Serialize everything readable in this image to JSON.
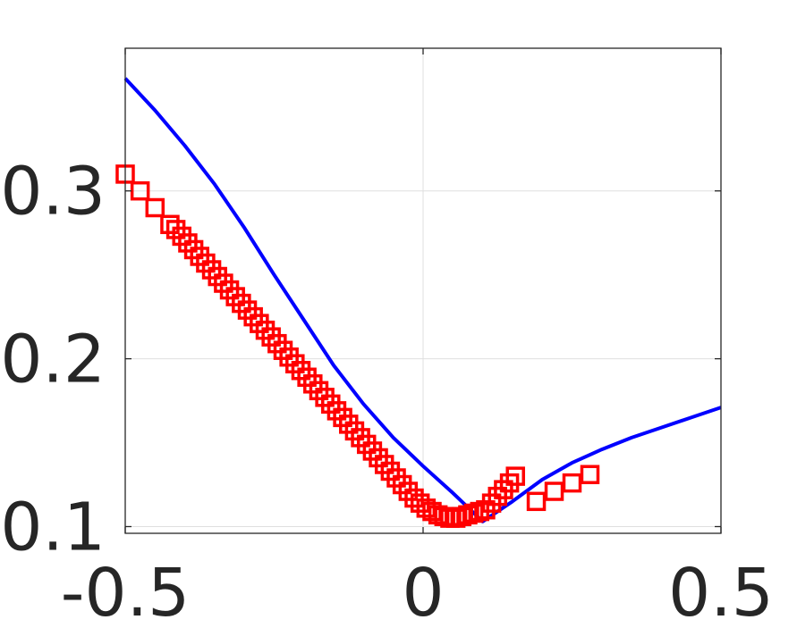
{
  "chart_data": {
    "type": "line",
    "title": "",
    "xlabel": "",
    "ylabel": "",
    "xlim": [
      -0.5,
      0.5
    ],
    "ylim": [
      0.096,
      0.385
    ],
    "grid": true,
    "x_ticks": [
      -0.5,
      0,
      0.5
    ],
    "x_tick_labels": [
      "-0.5",
      "0",
      "0.5"
    ],
    "y_ticks": [
      0.1,
      0.2,
      0.3
    ],
    "y_tick_labels": [
      "0.1",
      "0.2",
      "0.3"
    ],
    "series": [
      {
        "style": "line",
        "color": "#0000ff",
        "x": [
          -0.5,
          -0.45,
          -0.4,
          -0.35,
          -0.3,
          -0.25,
          -0.2,
          -0.15,
          -0.1,
          -0.05,
          0.0,
          0.05,
          0.1,
          0.15,
          0.2,
          0.25,
          0.3,
          0.35,
          0.4,
          0.45,
          0.5
        ],
        "y": [
          0.367,
          0.348,
          0.327,
          0.304,
          0.278,
          0.25,
          0.223,
          0.196,
          0.173,
          0.153,
          0.136,
          0.12,
          0.103,
          0.115,
          0.128,
          0.138,
          0.146,
          0.153,
          0.159,
          0.165,
          0.171
        ]
      },
      {
        "style": "markers",
        "marker": "square",
        "color": "#ff0000",
        "x": [
          -0.5,
          -0.475,
          -0.45,
          -0.425,
          -0.415,
          -0.405,
          -0.395,
          -0.385,
          -0.375,
          -0.365,
          -0.355,
          -0.345,
          -0.335,
          -0.325,
          -0.315,
          -0.305,
          -0.295,
          -0.285,
          -0.275,
          -0.265,
          -0.255,
          -0.245,
          -0.235,
          -0.225,
          -0.215,
          -0.205,
          -0.195,
          -0.185,
          -0.175,
          -0.165,
          -0.155,
          -0.145,
          -0.135,
          -0.125,
          -0.115,
          -0.105,
          -0.095,
          -0.085,
          -0.075,
          -0.065,
          -0.055,
          -0.045,
          -0.035,
          -0.025,
          -0.015,
          -0.005,
          0.005,
          0.015,
          0.025,
          0.035,
          0.045,
          0.055,
          0.065,
          0.075,
          0.085,
          0.095,
          0.105,
          0.115,
          0.125,
          0.135,
          0.145,
          0.155,
          0.19,
          0.22,
          0.25,
          0.28
        ],
        "y": [
          0.31,
          0.3,
          0.29,
          0.28,
          0.277,
          0.273,
          0.269,
          0.265,
          0.261,
          0.257,
          0.253,
          0.249,
          0.245,
          0.241,
          0.237,
          0.233,
          0.229,
          0.225,
          0.221,
          0.217,
          0.213,
          0.209,
          0.205,
          0.201,
          0.197,
          0.193,
          0.189,
          0.185,
          0.181,
          0.177,
          0.173,
          0.169,
          0.165,
          0.161,
          0.157,
          0.153,
          0.149,
          0.145,
          0.141,
          0.137,
          0.133,
          0.129,
          0.125,
          0.121,
          0.117,
          0.114,
          0.111,
          0.109,
          0.107,
          0.106,
          0.105,
          0.105,
          0.106,
          0.107,
          0.108,
          0.109,
          0.11,
          0.114,
          0.118,
          0.122,
          0.126,
          0.13,
          0.115,
          0.121,
          0.126,
          0.131
        ]
      }
    ]
  }
}
